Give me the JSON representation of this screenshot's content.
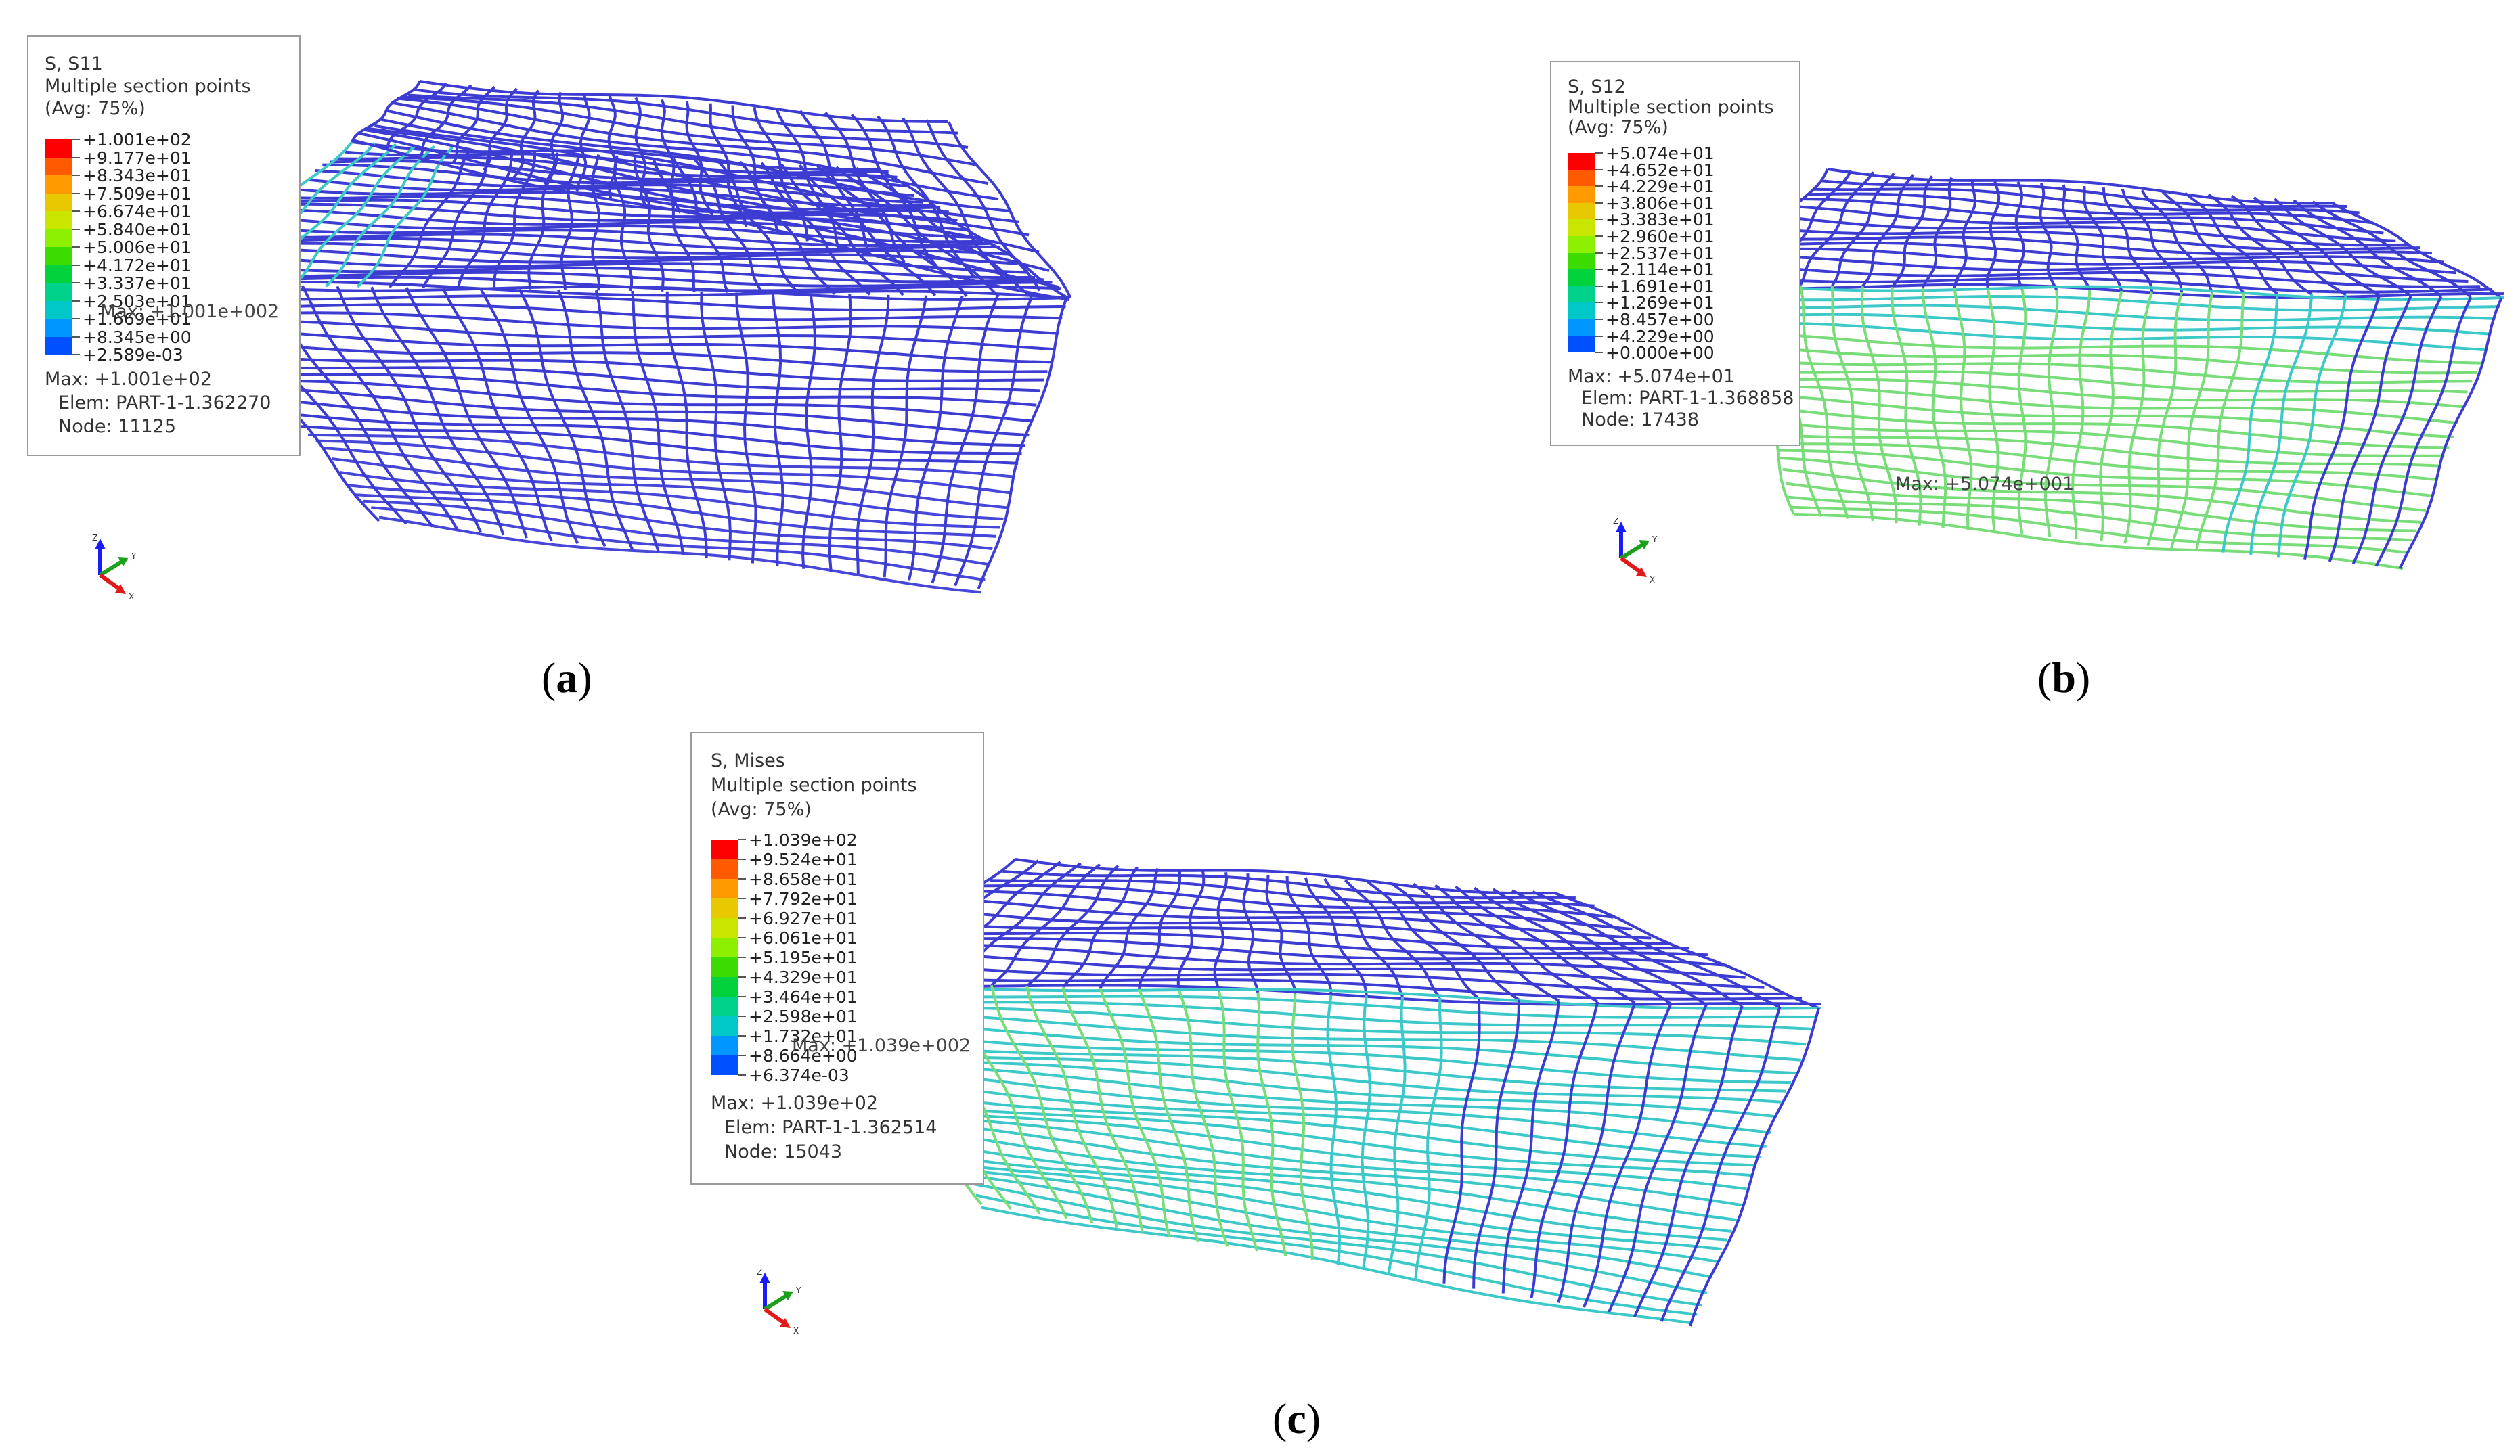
{
  "panels": [
    {
      "id": "a",
      "caption_letter": "a",
      "legend": {
        "variable": "S, S11",
        "section": "Multiple section points",
        "avg": "(Avg: 75%)",
        "ticks": [
          "+1.001e+02",
          "+9.177e+01",
          "+8.343e+01",
          "+7.509e+01",
          "+6.674e+01",
          "+5.840e+01",
          "+5.006e+01",
          "+4.172e+01",
          "+3.337e+01",
          "+2.503e+01",
          "+1.669e+01",
          "+8.345e+00",
          "+2.589e-03"
        ],
        "max_value": "Max: +1.001e+02",
        "elem": "Elem: PART-1-1.362270",
        "node": "Node: 11125"
      },
      "max_label": "Max: +1.001e+002"
    },
    {
      "id": "b",
      "caption_letter": "b",
      "legend": {
        "variable": "S, S12",
        "section": "Multiple section points",
        "avg": "(Avg: 75%)",
        "ticks": [
          "+5.074e+01",
          "+4.652e+01",
          "+4.229e+01",
          "+3.806e+01",
          "+3.383e+01",
          "+2.960e+01",
          "+2.537e+01",
          "+2.114e+01",
          "+1.691e+01",
          "+1.269e+01",
          "+8.457e+00",
          "+4.229e+00",
          "+0.000e+00"
        ],
        "max_value": "Max: +5.074e+01",
        "elem": "Elem: PART-1-1.368858",
        "node": "Node: 17438"
      },
      "max_label": "Max: +5.074e+001"
    },
    {
      "id": "c",
      "caption_letter": "c",
      "legend": {
        "variable": "S, Mises",
        "section": "Multiple section points",
        "avg": "(Avg: 75%)",
        "ticks": [
          "+1.039e+02",
          "+9.524e+01",
          "+8.658e+01",
          "+7.792e+01",
          "+6.927e+01",
          "+6.061e+01",
          "+5.195e+01",
          "+4.329e+01",
          "+3.464e+01",
          "+2.598e+01",
          "+1.732e+01",
          "+8.664e+00",
          "+6.374e-03"
        ],
        "max_value": "Max: +1.039e+02",
        "elem": "Elem: PART-1-1.362514",
        "node": "Node: 15043"
      },
      "max_label": "Max: +1.039e+002"
    }
  ],
  "triad_axes": {
    "z": "Z",
    "y": "Y",
    "x": "X"
  },
  "colormap": [
    "#ff0000",
    "#ff5a00",
    "#ff9a00",
    "#e8c800",
    "#c8e600",
    "#8cf000",
    "#3cdc00",
    "#00d23c",
    "#00d28c",
    "#00c8c8",
    "#0096ff",
    "#0050ff",
    "#0000ff"
  ],
  "mesh_colors": {
    "low": "#3c3cd2",
    "mid": "#3cc8c8",
    "high": "#78dc78"
  }
}
